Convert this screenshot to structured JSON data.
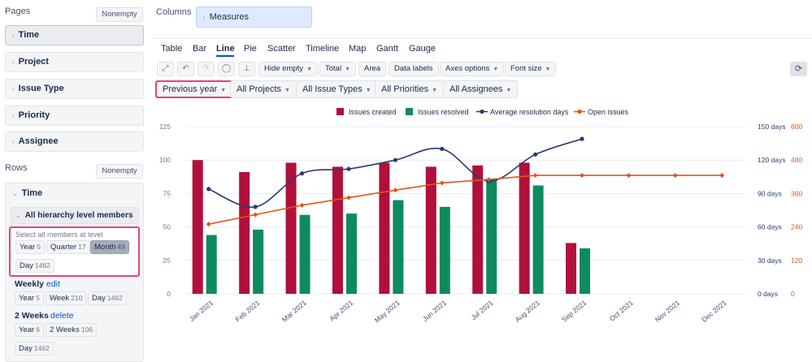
{
  "left": {
    "pages_label": "Pages",
    "pages_nonempty": "Nonempty",
    "page_dims": [
      "Time",
      "Project",
      "Issue Type",
      "Priority",
      "Assignee"
    ],
    "rows_label": "Rows",
    "rows_nonempty": "Nonempty",
    "rows_dim": "Time",
    "all_hierarchy": "All hierarchy level members",
    "select_hint": "Select all members at level",
    "levels": [
      {
        "label": "Year",
        "count": "5"
      },
      {
        "label": "Quarter",
        "count": "17"
      },
      {
        "label": "Month",
        "count": "49"
      },
      {
        "label": "Day",
        "count": "1462"
      }
    ],
    "weekly": {
      "title": "Weekly",
      "link": "edit",
      "levels": [
        {
          "label": "Year",
          "count": "5"
        },
        {
          "label": "Week",
          "count": "210"
        },
        {
          "label": "Day",
          "count": "1462"
        }
      ]
    },
    "two_weeks": {
      "title": "2 Weeks",
      "link": "delete",
      "levels": [
        {
          "label": "Year",
          "count": "6"
        },
        {
          "label": "2 Weeks",
          "count": "106"
        },
        {
          "label": "Day",
          "count": "1462"
        }
      ]
    }
  },
  "columns": {
    "label": "Columns",
    "measure": "Measures"
  },
  "tabs": [
    "Table",
    "Bar",
    "Line",
    "Pie",
    "Scatter",
    "Timeline",
    "Map",
    "Gantt",
    "Gauge"
  ],
  "toolbar": {
    "hide_empty": "Hide empty",
    "total": "Total",
    "area": "Area",
    "data_labels": "Data labels",
    "axes_options": "Axes options",
    "font_size": "Font size"
  },
  "icons": [
    "expand-icon",
    "undo-icon",
    "redo-icon",
    "comment-icon",
    "pin-icon",
    "refresh-icon"
  ],
  "filters": [
    "Previous year",
    "All Projects",
    "All Issue Types",
    "All Priorities",
    "All Assignees"
  ],
  "chart_data": {
    "type": "bar",
    "categories": [
      "Jan 2021",
      "Feb 2021",
      "Mar 2021",
      "Apr 2021",
      "May 2021",
      "Jun 2021",
      "Jul 2021",
      "Aug 2021",
      "Sep 2021",
      "Oct 2021",
      "Nov 2021",
      "Dec 2021"
    ],
    "series": [
      {
        "name": "Issues created",
        "kind": "bar",
        "axis": "left",
        "color": "#b0103a",
        "values": [
          100,
          91,
          98,
          95,
          98,
          95,
          96,
          98,
          38,
          null,
          null,
          null
        ]
      },
      {
        "name": "Issues resolved",
        "kind": "bar",
        "axis": "left",
        "color": "#0e8a5f",
        "values": [
          44,
          48,
          59,
          60,
          70,
          65,
          86,
          81,
          34,
          null,
          null,
          null
        ]
      },
      {
        "name": "Average resolution days",
        "kind": "line",
        "axis": "right1",
        "color": "#253d73",
        "values": [
          94,
          78,
          108,
          112,
          120,
          130,
          101,
          125,
          139,
          null,
          null,
          null
        ]
      },
      {
        "name": "Open issues",
        "kind": "line",
        "axis": "right2",
        "color": "#e0561b",
        "values": [
          250,
          284,
          318,
          345,
          372,
          398,
          410,
          425,
          425,
          425,
          425,
          425
        ]
      }
    ],
    "y_left": {
      "min": 0,
      "max": 125,
      "ticks": [
        "0",
        "25",
        "50",
        "75",
        "100",
        "125"
      ]
    },
    "y_right1": {
      "min": 0,
      "max": 150,
      "ticks": [
        "0 days",
        "30 days",
        "60 days",
        "90 days",
        "120 days",
        "150 days"
      ],
      "color": "#253d73"
    },
    "y_right2": {
      "min": 0,
      "max": 600,
      "ticks": [
        "0",
        "120",
        "240",
        "360",
        "480",
        "600"
      ],
      "color": "#e0561b"
    },
    "legend_position": "top",
    "grid": true
  }
}
